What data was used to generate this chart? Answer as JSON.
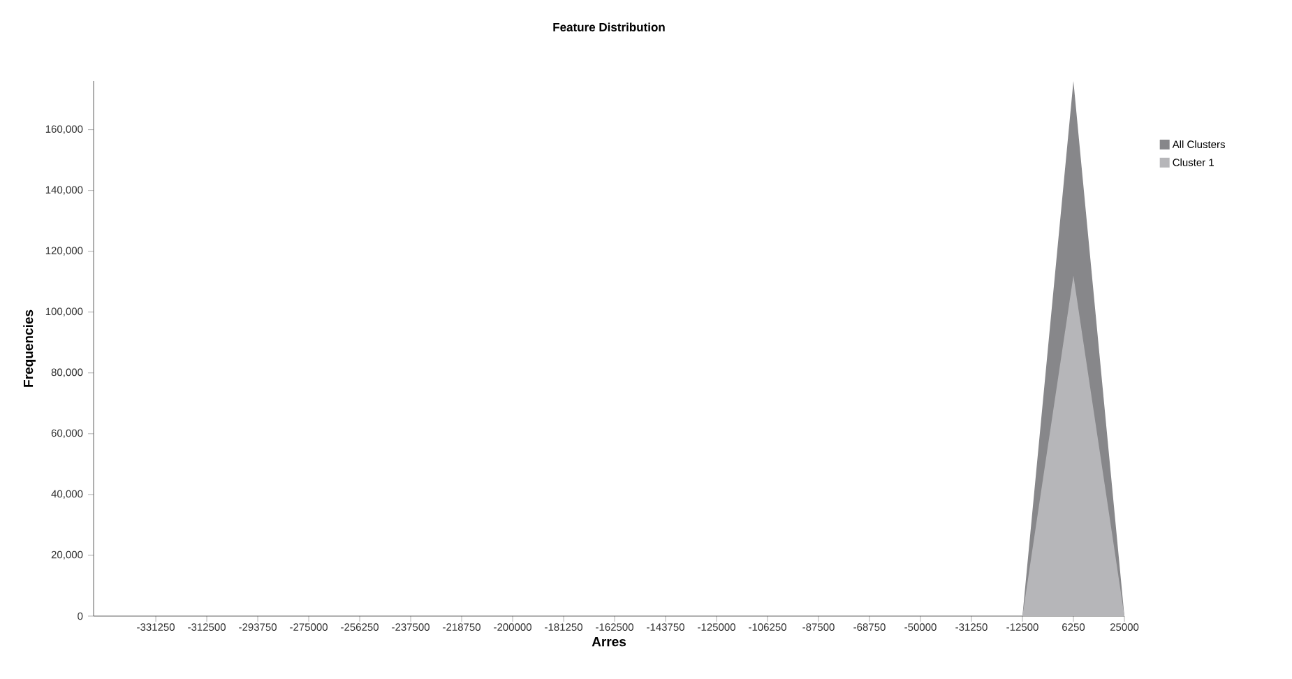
{
  "chart_data": {
    "type": "area",
    "title": "Feature Distribution",
    "xlabel": "Arres",
    "ylabel": "Frequencies",
    "categories": [
      "-331250",
      "-312500",
      "-293750",
      "-275000",
      "-256250",
      "-237500",
      "-218750",
      "-200000",
      "-181250",
      "-162500",
      "-143750",
      "-125000",
      "-106250",
      "-87500",
      "-68750",
      "-50000",
      "-31250",
      "-12500",
      "6250",
      "25000"
    ],
    "series": [
      {
        "name": "All Clusters",
        "color": "#87878a",
        "values": [
          0,
          0,
          0,
          0,
          0,
          0,
          0,
          0,
          0,
          0,
          0,
          0,
          0,
          0,
          0,
          0,
          0,
          0,
          176000,
          0
        ]
      },
      {
        "name": "Cluster 1",
        "color": "#b6b6b9",
        "values": [
          0,
          0,
          0,
          0,
          0,
          0,
          0,
          0,
          0,
          0,
          0,
          0,
          0,
          0,
          0,
          0,
          0,
          0,
          112000,
          0
        ]
      }
    ],
    "ylim": [
      0,
      176000
    ],
    "yticks": [
      {
        "value": 0,
        "label": "0"
      },
      {
        "value": 20000,
        "label": "20,000"
      },
      {
        "value": 40000,
        "label": "40,000"
      },
      {
        "value": 60000,
        "label": "60,000"
      },
      {
        "value": 80000,
        "label": "80,000"
      },
      {
        "value": 100000,
        "label": "100,000"
      },
      {
        "value": 120000,
        "label": "120,000"
      },
      {
        "value": 140000,
        "label": "140,000"
      },
      {
        "value": 160000,
        "label": "160,000"
      }
    ],
    "grid": false,
    "legend": "right"
  }
}
